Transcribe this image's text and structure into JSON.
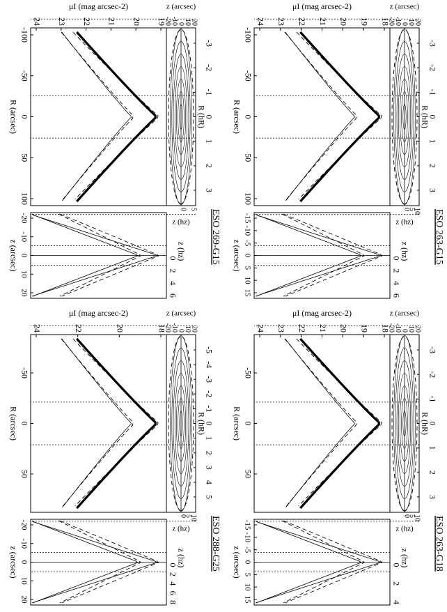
{
  "panels": [
    {
      "title": "ESO 263-G15",
      "contour": {
        "top_label": "R (hR)",
        "top_ticks": [
          "-3",
          "-2",
          "-1",
          "0",
          "1",
          "2",
          "3"
        ],
        "y_label": "z (arcsec)",
        "y_ticks": [
          "20",
          "10",
          "0",
          "-10",
          "-20"
        ],
        "y2_label": "z (hz)",
        "y2_ticks": [
          "10",
          "5",
          "0"
        ]
      },
      "profile": {
        "y_label": "μI (mag arcsec-2)",
        "y_ticks": [
          "18",
          "19",
          "20",
          "21",
          "22",
          "23",
          "24"
        ],
        "x_label": "R (arcsec)",
        "x_ticks": [
          "-100",
          "-50",
          "0",
          "50",
          "100"
        ]
      },
      "zprofile": {
        "top_label": "z (hz)",
        "top_ticks": [
          "0",
          "2",
          "4",
          "6"
        ],
        "x_label": "z (arcsec)",
        "x_ticks": [
          "-15",
          "-10",
          "-5",
          "0",
          "5",
          "10",
          "15"
        ]
      }
    },
    {
      "title": "ESO 263-G18",
      "contour": {
        "top_label": "R (hR)",
        "top_ticks": [
          "-3",
          "-2",
          "-1",
          "0",
          "1",
          "2",
          "3"
        ],
        "y_label": "z (arcsec)",
        "y_ticks": [
          "20",
          "10",
          "0",
          "-10",
          "-20"
        ],
        "y2_label": "z (hz)",
        "y2_ticks": [
          "10",
          "5",
          "0"
        ]
      },
      "profile": {
        "y_label": "μI (mag arcsec-2)",
        "y_ticks": [
          "18",
          "19",
          "20",
          "21",
          "22",
          "23",
          "24"
        ],
        "x_label": "R (arcsec)",
        "x_ticks": [
          "-50",
          "0",
          "50"
        ]
      },
      "zprofile": {
        "top_label": "z (hz)",
        "top_ticks": [
          "0",
          "2",
          "4"
        ],
        "x_label": "z (arcsec)",
        "x_ticks": [
          "-15",
          "-10",
          "-5",
          "0",
          "5",
          "10",
          "15"
        ]
      }
    },
    {
      "title": "ESO 269-G15",
      "contour": {
        "top_label": "R (hR)",
        "top_ticks": [
          "-3",
          "-2",
          "-1",
          "0",
          "1",
          "2",
          "3"
        ],
        "y_label": "z (arcsec)",
        "y_ticks": [
          "20",
          "10",
          "0",
          "-10",
          "-20"
        ],
        "y2_label": "z (hz)",
        "y2_ticks": [
          "5",
          "0"
        ]
      },
      "profile": {
        "y_label": "μI (mag arcsec-2)",
        "y_ticks": [
          "19",
          "20",
          "21",
          "22",
          "23",
          "24"
        ],
        "x_label": "R (arcsec)",
        "x_ticks": [
          "-100",
          "-50",
          "0",
          "50",
          "100"
        ]
      },
      "zprofile": {
        "top_label": "z (hz)",
        "top_ticks": [
          "0",
          "2",
          "4",
          "6"
        ],
        "x_label": "z (arcsec)",
        "x_ticks": [
          "-20",
          "-10",
          "0",
          "10",
          "20"
        ]
      }
    },
    {
      "title": "ESO 288-G25",
      "contour": {
        "top_label": "R (hR)",
        "top_ticks": [
          "-5",
          "-4",
          "-3",
          "-2",
          "-1",
          "0",
          "1",
          "2",
          "3",
          "4",
          "5"
        ],
        "y_label": "z (arcsec)",
        "y_ticks": [
          "20",
          "10",
          "0",
          "-10",
          "-20"
        ],
        "y2_label": "z (hz)",
        "y2_ticks": [
          "10",
          "5",
          "0"
        ]
      },
      "profile": {
        "y_label": "μI (mag arcsec-2)",
        "y_ticks": [
          "18",
          "20",
          "22",
          "24"
        ],
        "x_label": "R (arcsec)",
        "x_ticks": [
          "-50",
          "0",
          "50"
        ]
      },
      "zprofile": {
        "top_label": "z (hz)",
        "top_ticks": [
          "0",
          "2",
          "4",
          "6",
          "8"
        ],
        "x_label": "z (arcsec)",
        "x_ticks": [
          "-20",
          "-10",
          "0",
          "10",
          "20"
        ]
      }
    }
  ]
}
